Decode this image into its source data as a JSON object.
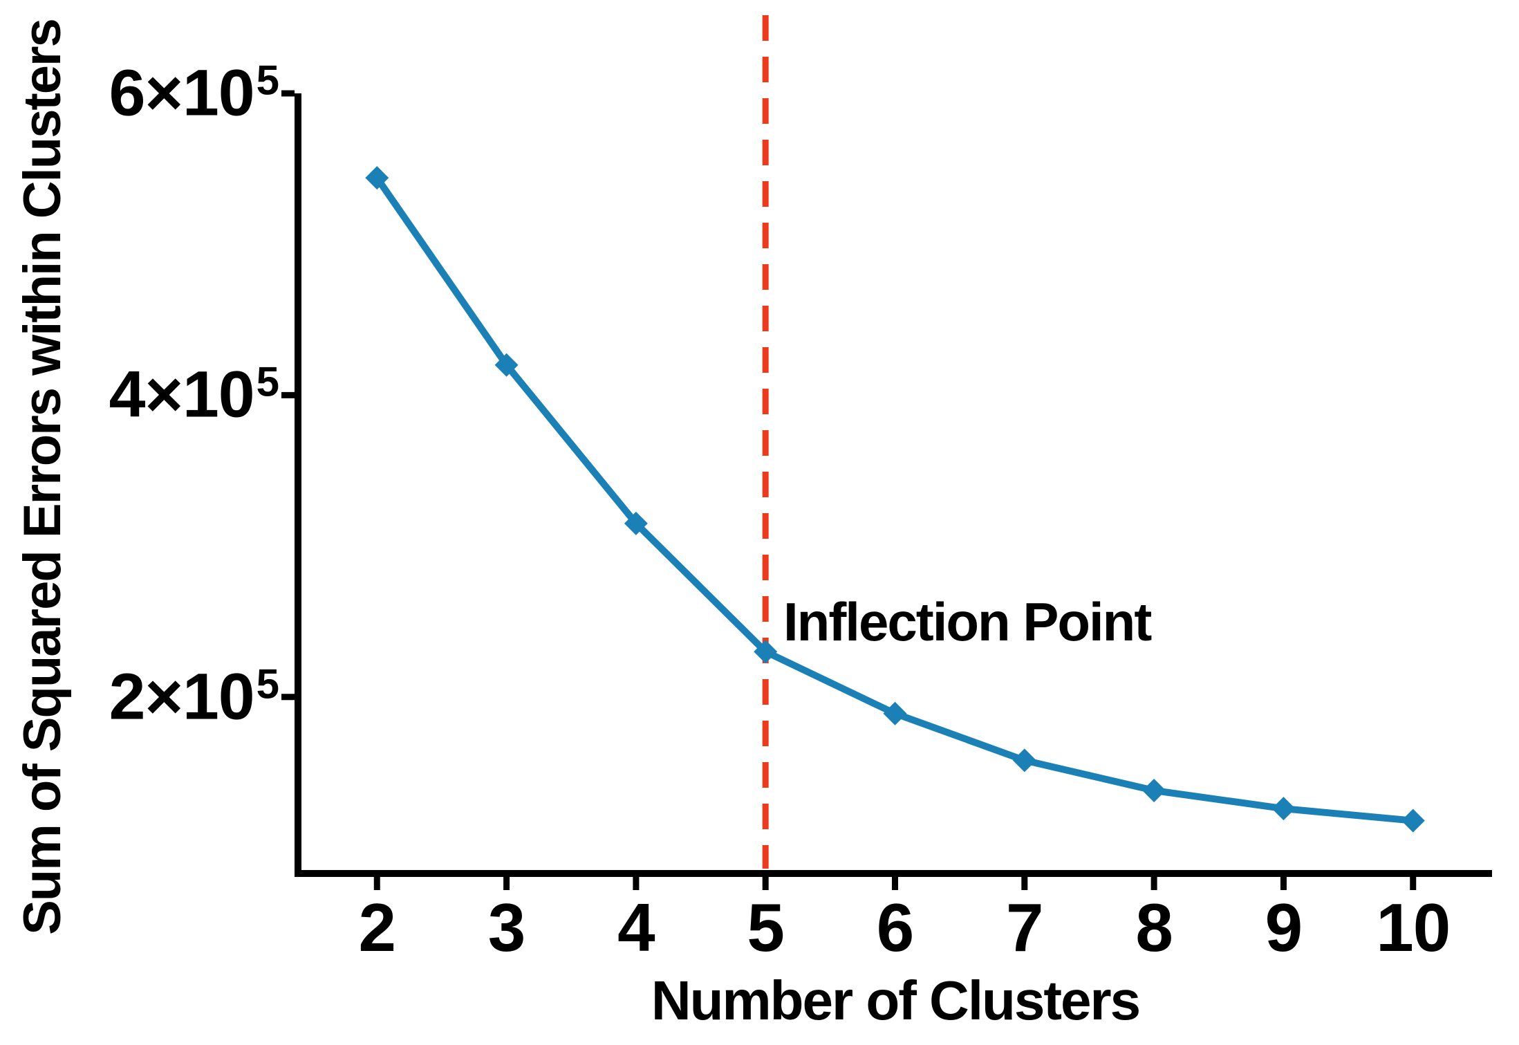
{
  "figure": {
    "background": "#ffffff"
  },
  "colors": {
    "series_line": "#1a80b6",
    "vline_red": "#ee3a1c",
    "axis": "#000000",
    "text": "#000000"
  },
  "chart_data": {
    "type": "line",
    "title": "",
    "xlabel": "Number of Clusters",
    "ylabel": "Sum of Squared Errors within Clusters",
    "x": [
      2,
      3,
      4,
      5,
      6,
      7,
      8,
      9,
      10
    ],
    "series": [
      {
        "color": "#1a80b6",
        "marker": "diamond",
        "values": [
          544000,
          420000,
          315000,
          230000,
          189000,
          158000,
          138000,
          126000,
          118000
        ]
      }
    ],
    "xlim": [
      1.39,
      10.61
    ],
    "ylim": [
      83000,
      600000
    ],
    "x_ticks": [
      2,
      3,
      4,
      5,
      6,
      7,
      8,
      9,
      10
    ],
    "y_ticks": [
      {
        "value": 200000,
        "mantissa": "2×10",
        "exponent": "5"
      },
      {
        "value": 400000,
        "mantissa": "4×10",
        "exponent": "5"
      },
      {
        "value": 600000,
        "mantissa": "6×10",
        "exponent": "5"
      }
    ],
    "grid": false,
    "legend": null,
    "vline": {
      "x": 5,
      "color": "#ee3a1c",
      "style": "dashed"
    },
    "annotation": {
      "text": "Inflection Point",
      "at_x": 5,
      "at_y": 255000
    }
  }
}
